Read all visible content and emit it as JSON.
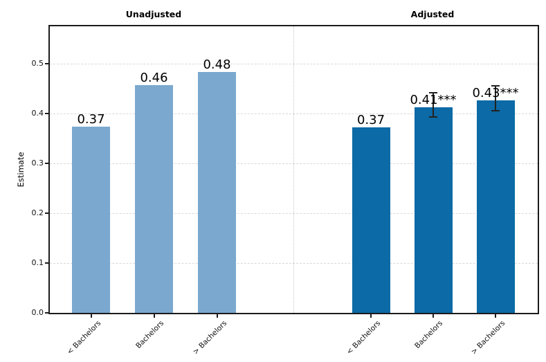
{
  "chart_data": {
    "type": "bar",
    "ylabel": "Estimate",
    "ylim": [
      0,
      0.575
    ],
    "yticks": [
      0.0,
      0.1,
      0.2,
      0.3,
      0.4,
      0.5
    ],
    "ytick_labels": [
      "0.0",
      "0.1",
      "0.2",
      "0.3",
      "0.4",
      "0.5"
    ],
    "grid": {
      "axis": "y",
      "style": "dashed"
    },
    "panel_divider": {
      "style": "dotted",
      "position": "between panels"
    },
    "categories": [
      "< Bachelors",
      "Bachelors",
      "> Bachelors"
    ],
    "panels": [
      {
        "title": "Unadjusted",
        "bar_color": "#7ba8ce",
        "values": [
          0.37,
          0.46,
          0.48
        ],
        "plotted_values": [
          0.373,
          0.457,
          0.484
        ],
        "bar_labels": [
          "0.37",
          "0.46",
          "0.48"
        ],
        "error_bars": [
          null,
          null,
          null
        ]
      },
      {
        "title": "Adjusted",
        "bar_color": "#0c6aa6",
        "values": [
          0.37,
          0.41,
          0.43
        ],
        "plotted_values": [
          0.372,
          0.413,
          0.427
        ],
        "bar_labels": [
          "0.37",
          "0.41***",
          "0.43***"
        ],
        "error_bars": [
          null,
          {
            "low": 0.393,
            "high": 0.442
          },
          {
            "low": 0.405,
            "high": 0.455
          }
        ]
      }
    ],
    "colors": {
      "grid": "#d8d8d8",
      "divider": "#c6c6c6",
      "spine": "#1b1b1b",
      "error_bar": "#222222",
      "text": "#000000",
      "background": "#ffffff"
    }
  }
}
